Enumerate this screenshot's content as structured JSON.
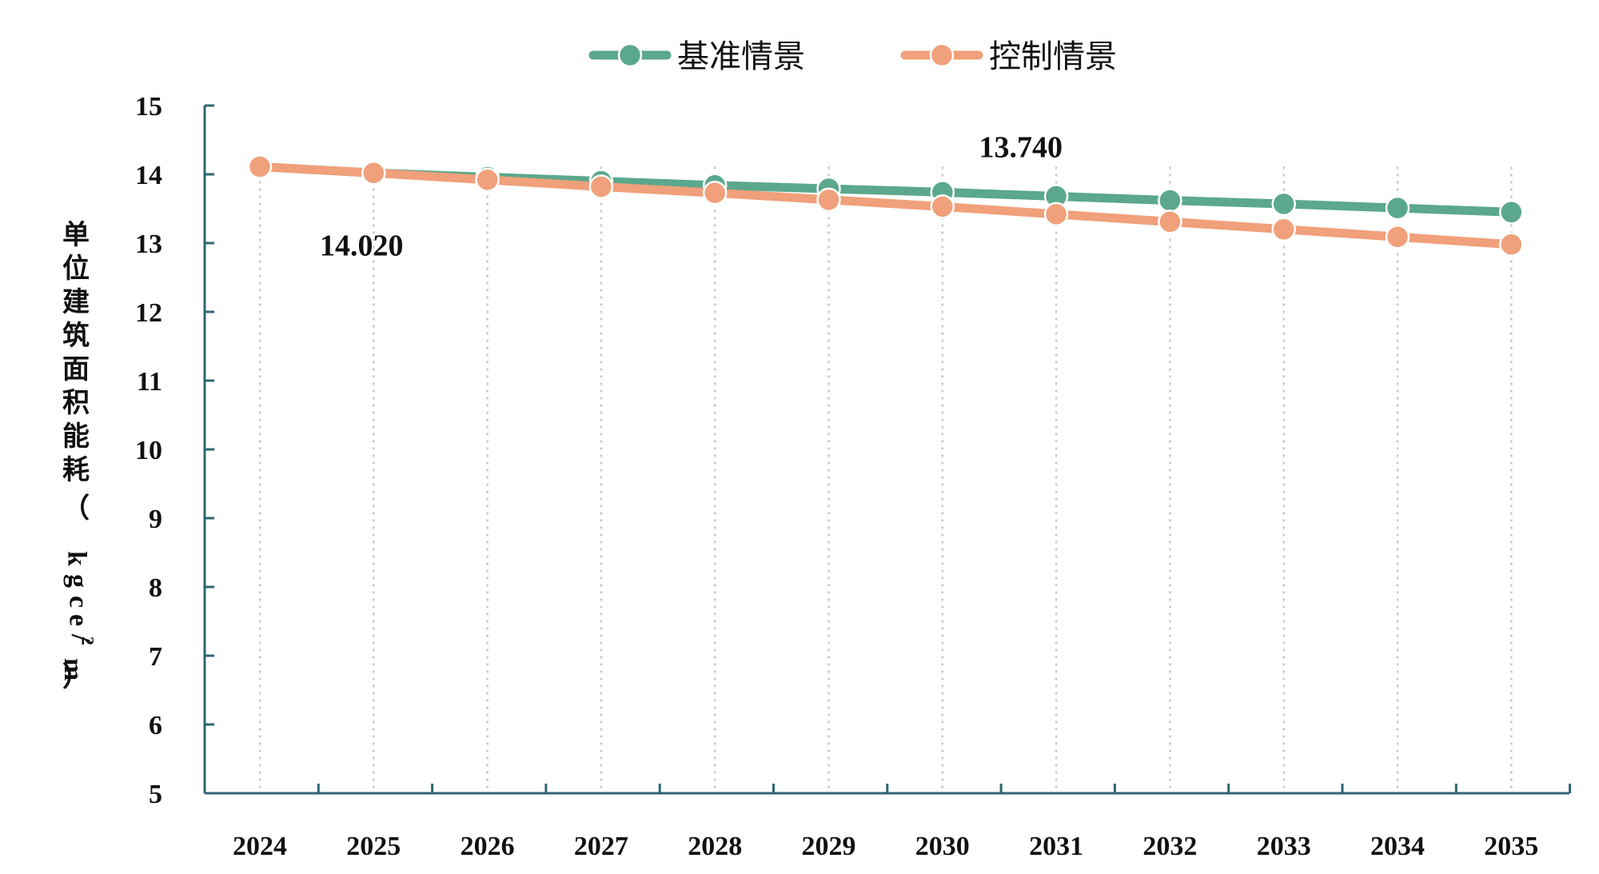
{
  "chart_data": {
    "type": "line",
    "title": "",
    "xlabel": "",
    "ylabel": "单位建筑面积能耗（kgce/m²）",
    "ylabel_chars": [
      "单",
      "位",
      "建",
      "筑",
      "面",
      "积",
      "能",
      "耗",
      "（",
      "k",
      "g",
      "c",
      "e",
      "/",
      "m",
      "2",
      "）"
    ],
    "categories": [
      "2024",
      "2025",
      "2026",
      "2027",
      "2028",
      "2029",
      "2030",
      "2031",
      "2032",
      "2033",
      "2034",
      "2035"
    ],
    "ylim": [
      5,
      15
    ],
    "yticks": [
      5,
      6,
      7,
      8,
      9,
      10,
      11,
      12,
      13,
      14,
      15
    ],
    "series": [
      {
        "name": "基准情景",
        "color": "#5ba88c",
        "values": [
          14.11,
          14.02,
          13.96,
          13.9,
          13.84,
          13.79,
          13.74,
          13.68,
          13.62,
          13.57,
          13.51,
          13.45
        ]
      },
      {
        "name": "控制情景",
        "color": "#f0a07a",
        "values": [
          14.11,
          14.02,
          13.92,
          13.82,
          13.73,
          13.63,
          13.53,
          13.42,
          13.31,
          13.2,
          13.09,
          12.98
        ]
      }
    ],
    "annotations": [
      {
        "text": "14.020",
        "series": 1,
        "index": 1
      },
      {
        "text": "13.740",
        "series": 0,
        "index": 6
      }
    ],
    "legend_position": "top"
  }
}
